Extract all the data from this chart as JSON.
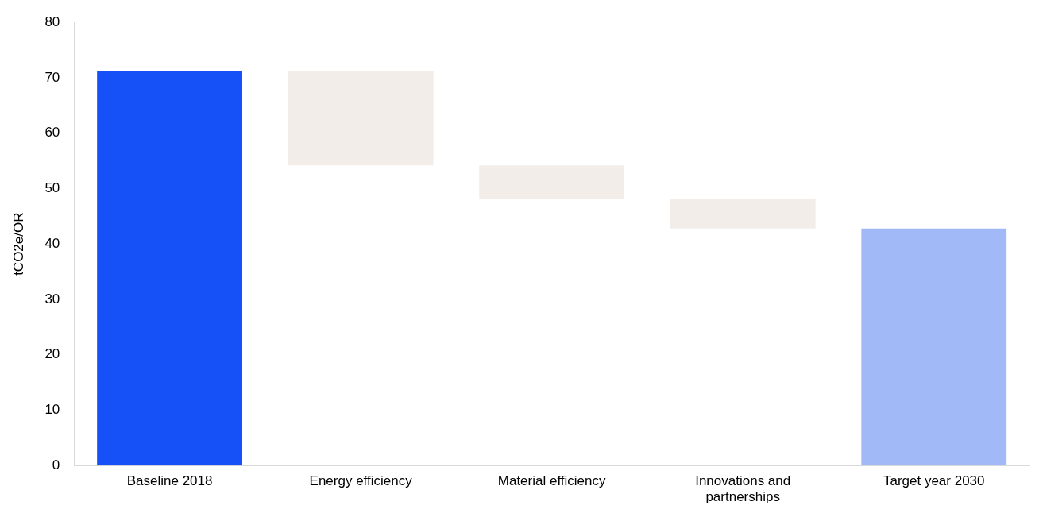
{
  "chart_data": {
    "type": "bar",
    "ylabel": "tCO2e/OR",
    "categories": [
      "Baseline 2018",
      "Energy efficiency",
      "Material efficiency",
      "Innovations and partnerships",
      "Target year 2030"
    ],
    "values": [
      71.3,
      17.1,
      6.1,
      5.3,
      42.8
    ],
    "base": [
      0,
      54.2,
      48.1,
      42.8,
      0
    ],
    "colors": [
      "#1650f7",
      "#f2ede8",
      "#f2ede8",
      "#f2ede8",
      "#a2b9f8"
    ],
    "ylim": [
      0,
      80
    ],
    "yticks": [
      0,
      10,
      20,
      30,
      40,
      50,
      60,
      70,
      80
    ],
    "grid": false,
    "legend": false
  }
}
